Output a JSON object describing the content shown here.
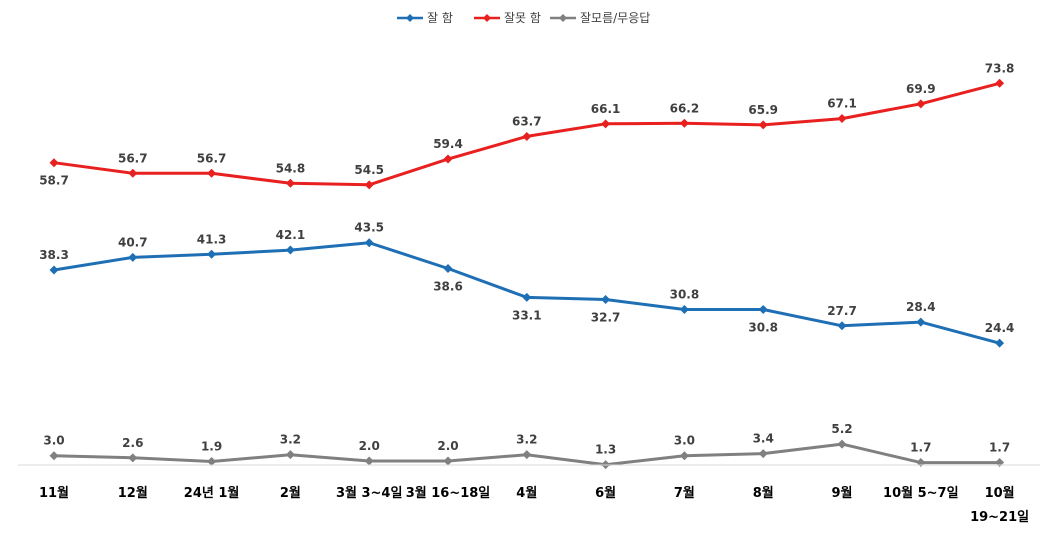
{
  "chart_data": {
    "type": "line",
    "categories": [
      "11월",
      "12월",
      "24년 1월",
      "2월",
      "3월 3~4일",
      "3월 16~18일",
      "4월",
      "6월",
      "7월",
      "8월",
      "9월",
      "10월 5~7일",
      "10월"
    ],
    "category_sublabels": [
      "",
      "",
      "",
      "",
      "",
      "",
      "",
      "",
      "",
      "",
      "",
      "",
      "19~21일"
    ],
    "series": [
      {
        "name": "잘 함",
        "color": "#1f6fb5",
        "values": [
          38.3,
          40.7,
          41.3,
          42.1,
          43.5,
          38.6,
          33.1,
          32.7,
          30.8,
          30.8,
          27.7,
          28.4,
          24.4
        ]
      },
      {
        "name": "잘못 함",
        "color": "#e8201f",
        "values": [
          58.7,
          56.7,
          56.7,
          54.8,
          54.5,
          59.4,
          63.7,
          66.1,
          66.2,
          65.9,
          67.1,
          69.9,
          73.8
        ]
      },
      {
        "name": "잘모름/무응답",
        "color": "#808080",
        "values": [
          3.0,
          2.6,
          1.9,
          3.2,
          2.0,
          2.0,
          3.2,
          1.3,
          3.0,
          3.4,
          5.2,
          1.7,
          1.7
        ]
      }
    ],
    "value_labels": [
      [
        "38.3",
        "40.7",
        "41.3",
        "42.1",
        "43.5",
        "38.6",
        "33.1",
        "32.7",
        "30.8",
        "30.8",
        "27.7",
        "28.4",
        "24.4"
      ],
      [
        "58.7",
        "56.7",
        "56.7",
        "54.8",
        "54.5",
        "59.4",
        "63.7",
        "66.1",
        "66.2",
        "65.9",
        "67.1",
        "69.9",
        "73.8"
      ],
      [
        "3.0",
        "2.6",
        "1.9",
        "3.2",
        "2.0",
        "2.0",
        "3.2",
        "1.3",
        "3.0",
        "3.4",
        "5.2",
        "1.7",
        "1.7"
      ]
    ],
    "label_positions": [
      [
        "above",
        "above",
        "above",
        "above",
        "above",
        "below",
        "below",
        "below",
        "above",
        "below",
        "above",
        "above",
        "above"
      ],
      [
        "below",
        "above",
        "above",
        "above",
        "above",
        "above",
        "above",
        "above",
        "above",
        "above",
        "above",
        "above",
        "above"
      ],
      [
        "above",
        "above",
        "above",
        "above",
        "above",
        "above",
        "above",
        "above",
        "above",
        "above",
        "above",
        "above",
        "above"
      ]
    ],
    "legend": {
      "position": "top-center"
    },
    "grid": false,
    "title": "",
    "xlabel": "",
    "ylabel": ""
  }
}
